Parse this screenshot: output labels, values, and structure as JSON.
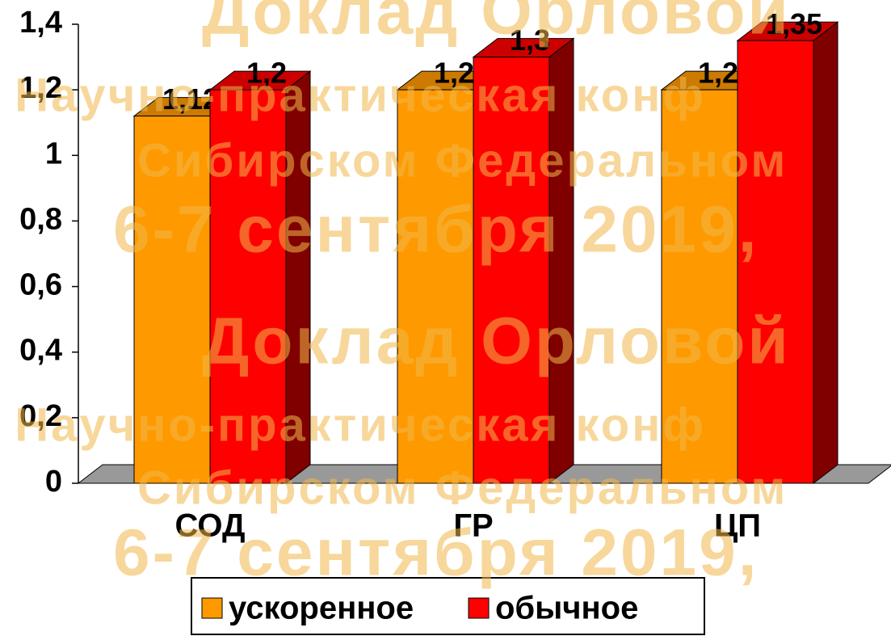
{
  "chart_data": {
    "type": "bar3d",
    "categories": [
      "СОД",
      "ГР",
      "ЦП"
    ],
    "series": [
      {
        "name": "ускоренное",
        "color": "#ff9900",
        "values": [
          1.12,
          1.2,
          1.2
        ],
        "value_labels": [
          "1,12",
          "1,2",
          "1,2"
        ]
      },
      {
        "name": "обычное",
        "color": "#ff0000",
        "values": [
          1.2,
          1.3,
          1.35
        ],
        "value_labels": [
          "1,2",
          "1,3",
          "1,35"
        ]
      }
    ],
    "ylim": [
      0,
      1.4
    ],
    "yticks": [
      0,
      {
        "value": 0.2,
        "label": "0,2"
      },
      {
        "value": 0.4,
        "label": "0,4"
      },
      {
        "value": 0.6,
        "label": "0,6"
      },
      {
        "value": 0.8,
        "label": "0,8"
      },
      1,
      {
        "value": 1.2,
        "label": "1,2"
      },
      {
        "value": 1.4,
        "label": "1,4"
      }
    ],
    "legend": "bottom",
    "watermarks": [
      "Доклад Орловой",
      "I Научно-практическая конф",
      "Сибирском Федеральном",
      "6-7 сентября 2019,"
    ]
  }
}
